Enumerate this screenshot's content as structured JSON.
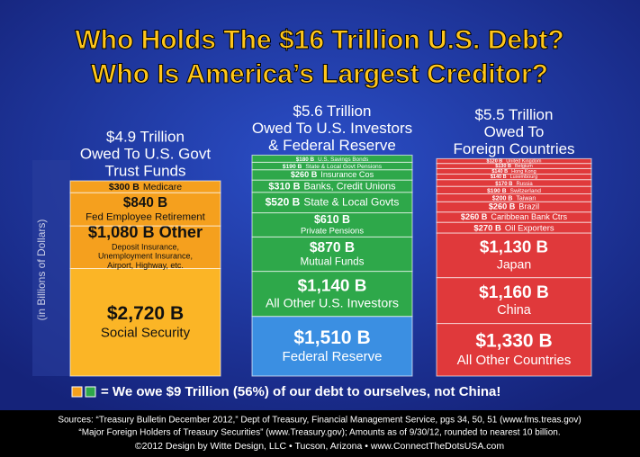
{
  "chart_data": {
    "type": "stacked_columns",
    "title": [
      "Who Holds The $16 Trillion U.S. Debt?",
      "Who Is America’s Largest Creditor?"
    ],
    "y_axis_label": "(in Billions of Dollars)",
    "ylim": [
      0,
      5600
    ],
    "columns": [
      {
        "heading": [
          "$4.9 Trillion",
          "Owed To U.S. Govt",
          "Trust Funds"
        ],
        "text_color": "#111",
        "segments": [
          {
            "value": 2720,
            "label": "$2,720 B",
            "name": "Social Security",
            "color": "#fbb526"
          },
          {
            "value": 1080,
            "label": "$1,080 B Other",
            "note": [
              "Deposit Insurance,",
              "Unemployment Insurance,",
              "Airport, Highway, etc."
            ],
            "color": "#f5a01e"
          },
          {
            "value": 840,
            "label": "$840 B",
            "name": "Fed Employee Retirement",
            "color": "#f5a01e"
          },
          {
            "value": 300,
            "label": "$300 B",
            "name": "Medicare",
            "color": "#f5a01e"
          }
        ]
      },
      {
        "heading": [
          "$5.6 Trillion",
          "Owed To U.S. Investors",
          "& Federal Reserve"
        ],
        "text_color": "#fff",
        "segments": [
          {
            "value": 1510,
            "label": "$1,510 B",
            "name": "Federal Reserve",
            "color": "#3b8fe2"
          },
          {
            "value": 1140,
            "label": "$1,140 B",
            "name": "All Other U.S. Investors",
            "color": "#2ea84a"
          },
          {
            "value": 870,
            "label": "$870 B",
            "name": "Mutual Funds",
            "color": "#2ea84a"
          },
          {
            "value": 610,
            "label": "$610 B",
            "name": "Private Pensions",
            "color": "#2ea84a"
          },
          {
            "value": 520,
            "label": "$520 B",
            "name": "State & Local Govts",
            "color": "#2ea84a"
          },
          {
            "value": 310,
            "label": "$310 B",
            "name": "Banks, Credit Unions",
            "color": "#2ea84a"
          },
          {
            "value": 260,
            "label": "$260 B",
            "name": "Insurance Cos",
            "color": "#2ea84a"
          },
          {
            "value": 190,
            "label": "$190 B",
            "name": "State & Local Govt Pensions",
            "color": "#2ea84a"
          },
          {
            "value": 180,
            "label": "$180 B",
            "name": "U.S. Savings Bonds",
            "color": "#2ea84a"
          }
        ]
      },
      {
        "heading": [
          "$5.5 Trillion",
          "Owed To",
          "Foreign Countries"
        ],
        "text_color": "#fff",
        "segments": [
          {
            "value": 1330,
            "label": "$1,330 B",
            "name": "All Other Countries",
            "color": "#e0393b"
          },
          {
            "value": 1160,
            "label": "$1,160 B",
            "name": "China",
            "color": "#e0393b"
          },
          {
            "value": 1130,
            "label": "$1,130 B",
            "name": "Japan",
            "color": "#e0393b"
          },
          {
            "value": 270,
            "label": "$270 B",
            "name": "Oil Exporters",
            "color": "#e0393b"
          },
          {
            "value": 260,
            "label": "$260 B",
            "name": "Caribbean Bank Ctrs",
            "color": "#e0393b"
          },
          {
            "value": 260,
            "label": "$260 B",
            "name": "Brazil",
            "color": "#e0393b"
          },
          {
            "value": 200,
            "label": "$200 B",
            "name": "Taiwan",
            "color": "#e0393b"
          },
          {
            "value": 190,
            "label": "$190 B",
            "name": "Switzerland",
            "color": "#e0393b"
          },
          {
            "value": 170,
            "label": "$170 B",
            "name": "Russia",
            "color": "#e0393b"
          },
          {
            "value": 140,
            "label": "$140 B",
            "name": "Luxembourg",
            "color": "#e0393b"
          },
          {
            "value": 140,
            "label": "$140 B",
            "name": "Hong Kong",
            "color": "#e0393b"
          },
          {
            "value": 130,
            "label": "$130 B",
            "name": "Belgium",
            "color": "#e0393b"
          },
          {
            "value": 120,
            "label": "$120 B",
            "name": "United Kingdom",
            "color": "#e0393b"
          }
        ]
      }
    ],
    "legend_text": "= We owe $9 Trillion (56%) of our debt to ourselves, not China!",
    "footer": [
      "Sources: “Treasury Bulletin December 2012,” Dept of Treasury, Financial Management Service, pgs 34, 50, 51 (www.fms.treas.gov)",
      "“Major Foreign Holders of Treasury Securities” (www.Treasury.gov); Amounts as of 9/30/12, rounded to nearest 10 billion.",
      "©2012 Design by Witte Design, LLC • Tucson, Arizona • www.ConnectTheDotsUSA.com"
    ]
  }
}
